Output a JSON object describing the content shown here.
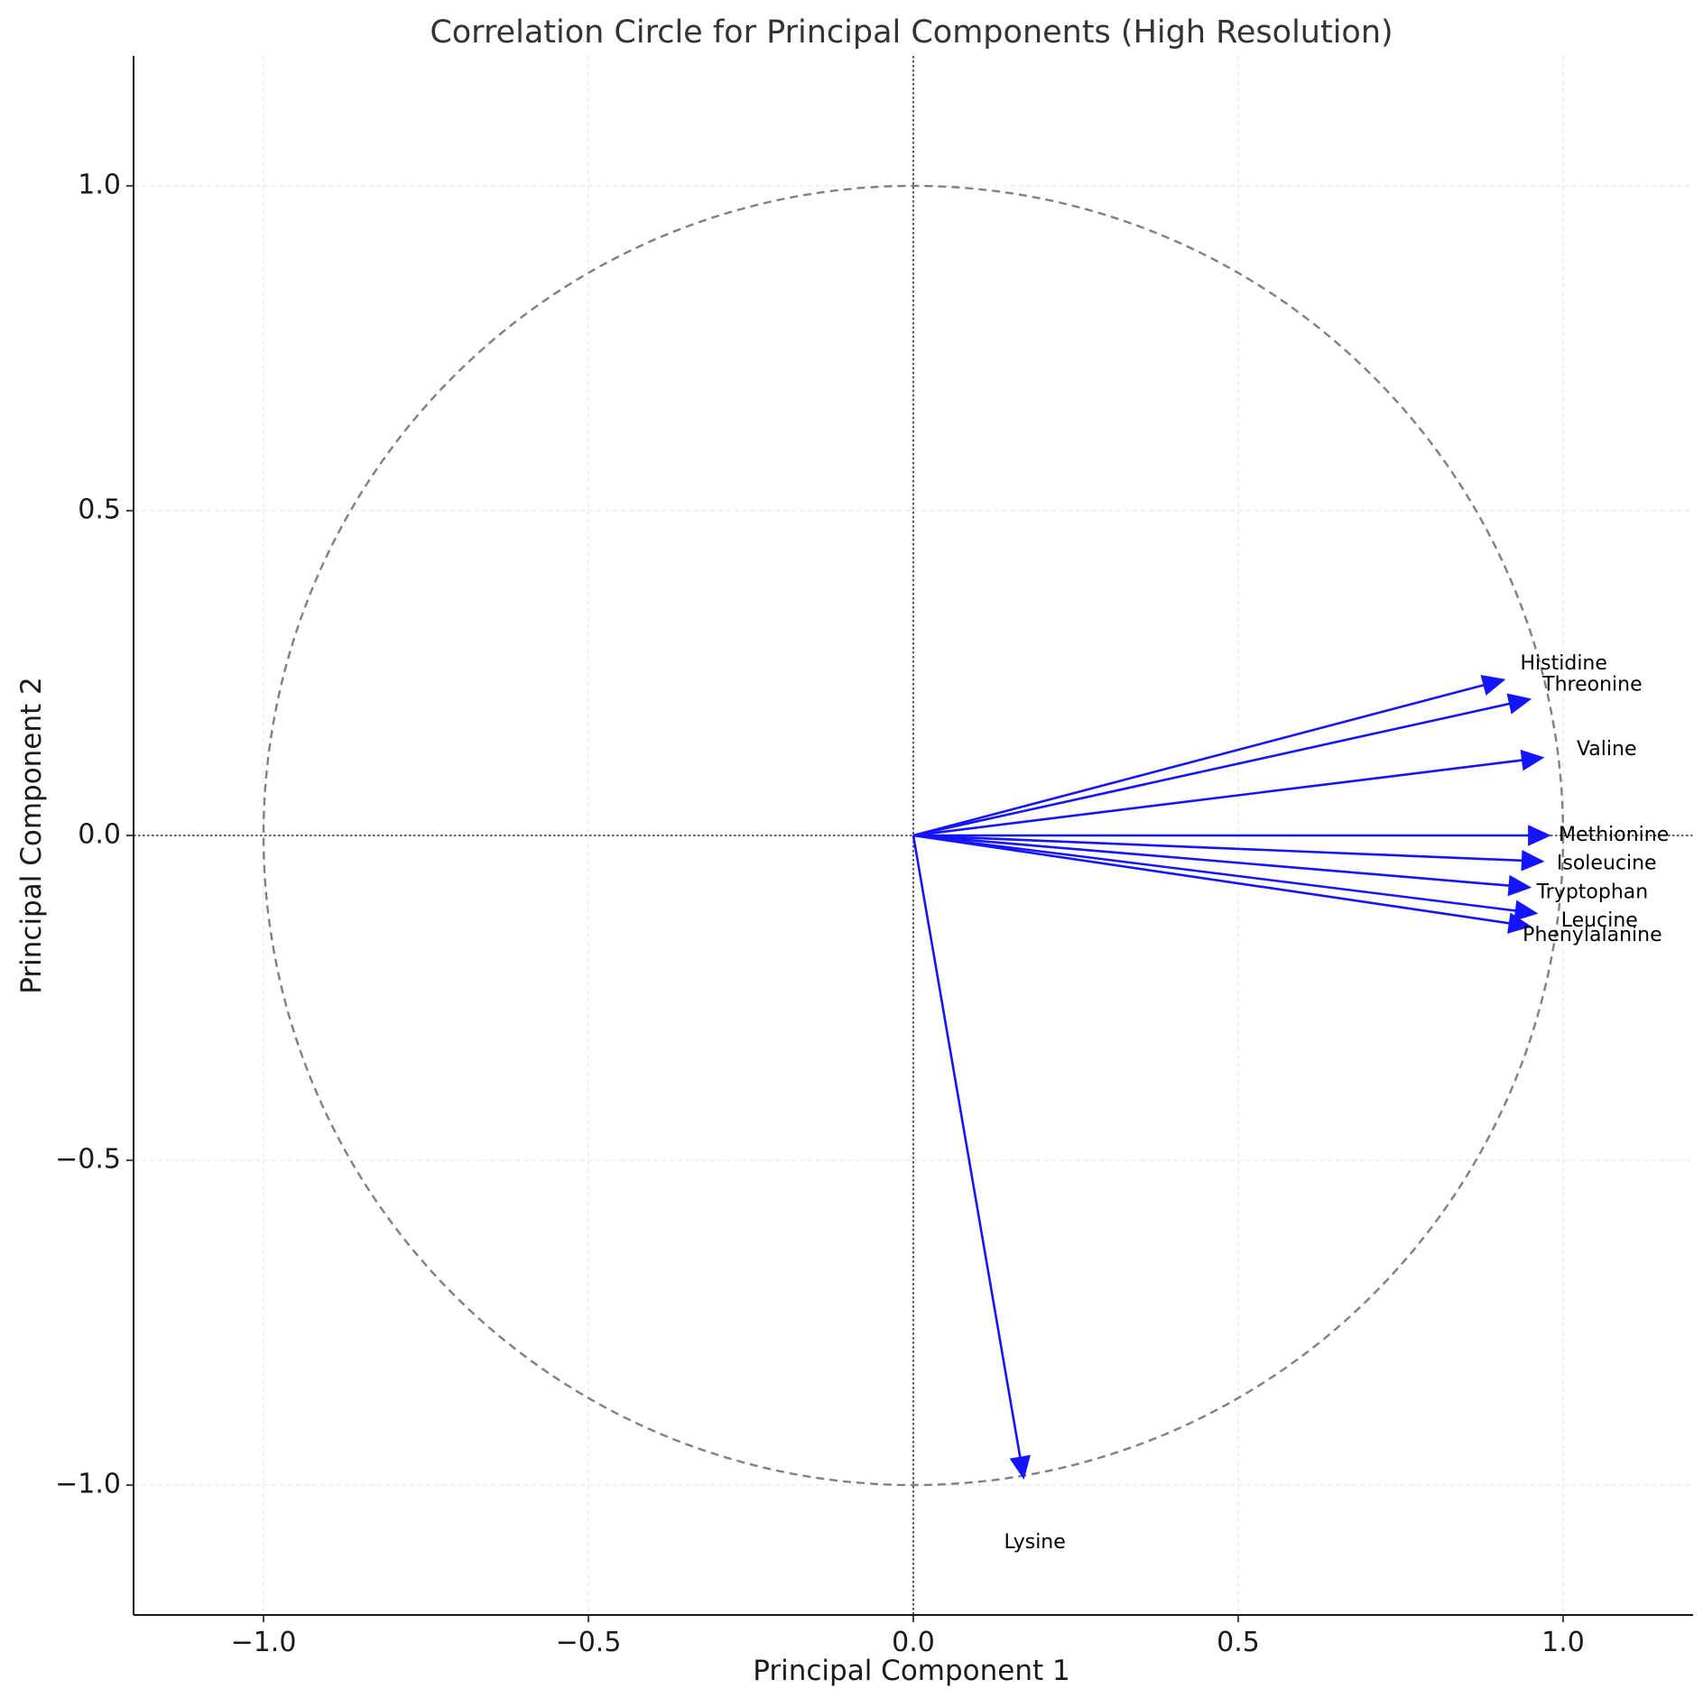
{
  "chart_data": {
    "type": "scatter",
    "subtype": "correlation-circle",
    "title": "Correlation Circle for Principal Components (High Resolution)",
    "xlabel": "Principal Component 1",
    "ylabel": "Principal Component 2",
    "xlim": [
      -1.2,
      1.2
    ],
    "ylim": [
      -1.2,
      1.2
    ],
    "xticks": [
      -1.0,
      -0.5,
      0.0,
      0.5,
      1.0
    ],
    "yticks": [
      -1.0,
      -0.5,
      0.0,
      0.5,
      1.0
    ],
    "xtick_labels": [
      "−1.0",
      "−0.5",
      "0.0",
      "0.5",
      "1.0"
    ],
    "ytick_labels": [
      "−1.0",
      "−0.5",
      "0.0",
      "0.5",
      "1.0"
    ],
    "grid": true,
    "unit_circle": true,
    "reference_lines": [
      "x=0",
      "y=0"
    ],
    "arrow_color": "#1414ff",
    "circle_color": "#808080",
    "vectors": [
      {
        "label": "Histidine",
        "x": 0.91,
        "y": 0.24
      },
      {
        "label": "Threonine",
        "x": 0.95,
        "y": 0.21
      },
      {
        "label": "Valine",
        "x": 0.97,
        "y": 0.12
      },
      {
        "label": "Methionine",
        "x": 0.98,
        "y": 0.0
      },
      {
        "label": "Isoleucine",
        "x": 0.97,
        "y": -0.04
      },
      {
        "label": "Tryptophan",
        "x": 0.95,
        "y": -0.08
      },
      {
        "label": "Leucine",
        "x": 0.96,
        "y": -0.12
      },
      {
        "label": "Phenylalanine",
        "x": 0.95,
        "y": -0.14
      },
      {
        "label": "Lysine",
        "x": 0.17,
        "y": -0.99
      }
    ]
  }
}
